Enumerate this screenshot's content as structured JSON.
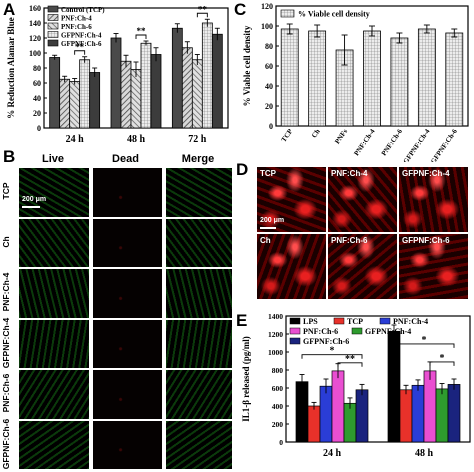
{
  "panels": {
    "A": "A",
    "B": "B",
    "C": "C",
    "D": "D",
    "E": "E"
  },
  "chart_data": [
    {
      "panel": "A",
      "type": "bar",
      "ylabel": "% Reduction Alamar Blue",
      "ylim": [
        0,
        160
      ],
      "yticks": [
        "0",
        "20",
        "40",
        "60",
        "80",
        "100",
        "120",
        "140",
        "160"
      ],
      "categories": [
        "24 h",
        "48 h",
        "72 h"
      ],
      "legend_position": "top-left",
      "series": [
        {
          "name": "Control (TCP)",
          "values": [
            94,
            120,
            133
          ],
          "errors": [
            3,
            6,
            6
          ],
          "color": "#4a4a4a",
          "pattern": "solid"
        },
        {
          "name": "PNF:Ch-4",
          "values": [
            65,
            89,
            107
          ],
          "errors": [
            4,
            8,
            8
          ],
          "color": "#7a7a7a",
          "pattern": "hatch"
        },
        {
          "name": "PNF:Ch-6",
          "values": [
            62,
            78,
            91
          ],
          "errors": [
            4,
            10,
            7
          ],
          "color": "#909090",
          "pattern": "hatch2"
        },
        {
          "name": "GFPNF:Ch-4",
          "values": [
            91,
            113,
            140
          ],
          "errors": [
            4,
            3,
            5
          ],
          "color": "#b0b0b0",
          "pattern": "grid"
        },
        {
          "name": "GFPNF:Ch-6",
          "values": [
            74,
            98,
            125
          ],
          "errors": [
            6,
            9,
            8
          ],
          "color": "#3c3c3c",
          "pattern": "solid"
        }
      ],
      "significance": [
        "**",
        "**",
        "**"
      ]
    },
    {
      "panel": "C",
      "type": "bar",
      "ylabel": "% Viable cell density",
      "ylim": [
        0,
        120
      ],
      "yticks": [
        "0",
        "20",
        "40",
        "60",
        "80",
        "100",
        "120"
      ],
      "categories": [
        "TCP",
        "Ch",
        "PNFs",
        "PNF:Ch-4",
        "PNF:Ch-6",
        "GFPNF:Ch-4",
        "GFPNF:Ch-6"
      ],
      "legend_position": "top-left",
      "series": [
        {
          "name": "% Viable cell density",
          "values": [
            97,
            95,
            76,
            95,
            88,
            97,
            93
          ],
          "errors": [
            5,
            6,
            15,
            5,
            5,
            4,
            4
          ],
          "color": "#bdbdbd",
          "pattern": "grid"
        }
      ]
    },
    {
      "panel": "E",
      "type": "bar",
      "ylabel": "IL1-β released (pg/ml)",
      "ylim": [
        0,
        1400
      ],
      "yticks": [
        "0",
        "200",
        "400",
        "600",
        "800",
        "1000",
        "1200",
        "1400"
      ],
      "categories": [
        "24 h",
        "48 h"
      ],
      "legend_position": "top-left",
      "series": [
        {
          "name": "LPS",
          "values": [
            670,
            1230
          ],
          "errors": [
            80,
            70
          ],
          "color": "#000000"
        },
        {
          "name": "TCP",
          "values": [
            400,
            580
          ],
          "errors": [
            40,
            50
          ],
          "color": "#e8312a"
        },
        {
          "name": "PNF:Ch-4",
          "values": [
            620,
            630
          ],
          "errors": [
            80,
            60
          ],
          "color": "#2a3dd6"
        },
        {
          "name": "PNF:Ch-6",
          "values": [
            790,
            790
          ],
          "errors": [
            80,
            100
          ],
          "color": "#e94fd1"
        },
        {
          "name": "GFPNF:Ch-4",
          "values": [
            430,
            590
          ],
          "errors": [
            60,
            60
          ],
          "color": "#2e9b2e"
        },
        {
          "name": "GFPNF:Ch-6",
          "values": [
            580,
            640
          ],
          "errors": [
            60,
            60
          ],
          "color": "#1a237e"
        }
      ],
      "significance": [
        "*",
        "**",
        "*",
        "*"
      ]
    }
  ],
  "panel_B": {
    "columns": [
      "Live",
      "Dead",
      "Merge"
    ],
    "rows": [
      "TCP",
      "Ch",
      "PNF:Ch-4",
      "GFPNF:Ch-4",
      "PNF:Ch-6",
      "GFPNF:Ch-6"
    ],
    "scale_bar": "200 μm"
  },
  "panel_D": {
    "cells": [
      "TCP",
      "PNF:Ch-4",
      "GFPNF:Ch-4",
      "Ch",
      "PNF:Ch-6",
      "GFPNF:Ch-6"
    ],
    "scale_bar": "200 μm"
  }
}
